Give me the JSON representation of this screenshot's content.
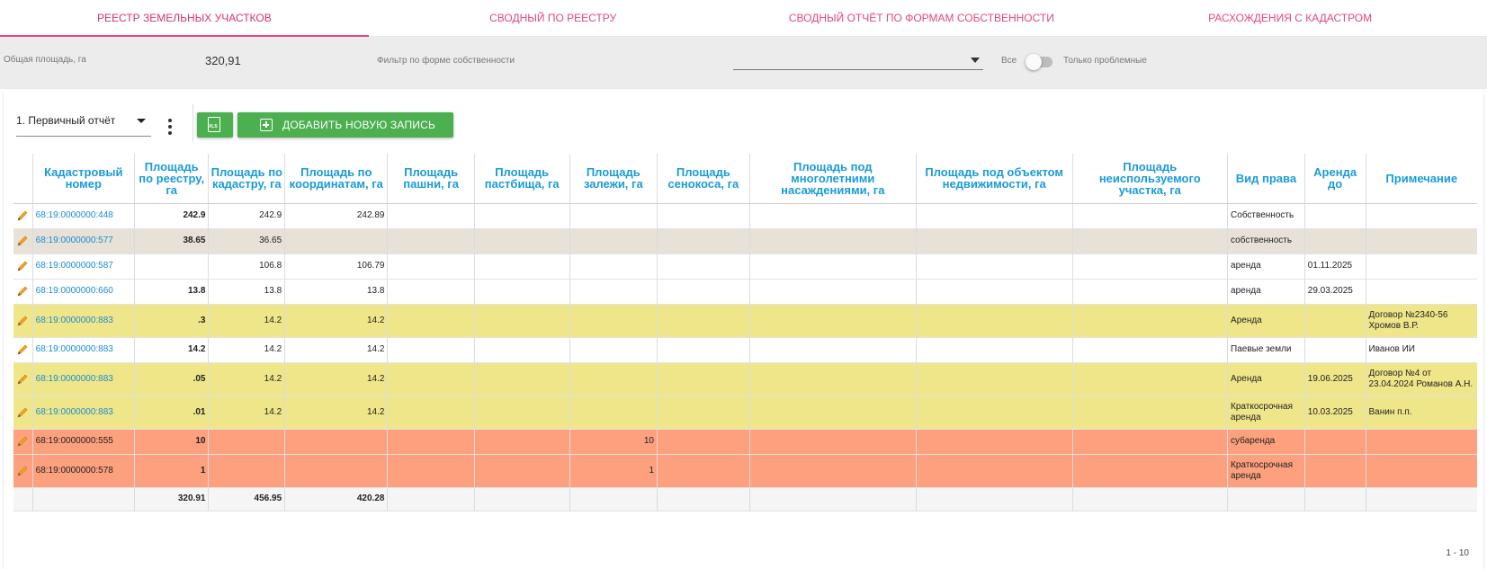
{
  "tabs": [
    {
      "label": "Реестр земельных участков"
    },
    {
      "label": "Сводный по реестру"
    },
    {
      "label": "Сводный отчёт по формам собственности"
    },
    {
      "label": "Расхождения с кадастром"
    }
  ],
  "filterbar": {
    "total_label": "Общая площадь, га",
    "total_value": "320,91",
    "owner_filter_label": "Фильтр по форме собственности",
    "owner_filter_value": "",
    "toggle_left": "Все",
    "toggle_right": "Только проблемные"
  },
  "toolbar": {
    "report_select": "1. Первичный отчёт",
    "add_label": "Добавить новую запись",
    "xls_icon_text": "XLS"
  },
  "table": {
    "headers": [
      "",
      "Кадастровый номер",
      "Площадь по реестру, га",
      "Площадь по кадастру, га",
      "Площадь по координатам, га",
      "Площадь пашни, га",
      "Площадь пастбища, га",
      "Площадь залежи, га",
      "Площадь сенокоса, га",
      "Площадь под многолетними насаждениями, га",
      "Площадь под объектом недвижимости, га",
      "Площадь неиспользуемого участка, га",
      "Вид права",
      "Аренда до",
      "Примечание"
    ],
    "rows": [
      {
        "style": "white",
        "cad": "68:19:0000000:448",
        "reg": "242.9",
        "kad": "242.9",
        "coord": "242.89",
        "pash": "",
        "past": "",
        "zal": "",
        "sen": "",
        "mnog": "",
        "obj": "",
        "neisp": "",
        "right": "Собственность",
        "until": "",
        "note": ""
      },
      {
        "style": "gray",
        "cad": "68:19:0000000:577",
        "reg": "38.65",
        "kad": "36.65",
        "coord": "",
        "pash": "",
        "past": "",
        "zal": "",
        "sen": "",
        "mnog": "",
        "obj": "",
        "neisp": "",
        "right": "собственность",
        "until": "",
        "note": ""
      },
      {
        "style": "white",
        "cad": "68:19:0000000:587",
        "reg": "",
        "kad": "106.8",
        "coord": "106.79",
        "pash": "",
        "past": "",
        "zal": "",
        "sen": "",
        "mnog": "",
        "obj": "",
        "neisp": "",
        "right": "аренда",
        "until": "01.11.2025",
        "note": ""
      },
      {
        "style": "white",
        "cad": "68:19:0000000:660",
        "reg": "13.8",
        "kad": "13.8",
        "coord": "13.8",
        "pash": "",
        "past": "",
        "zal": "",
        "sen": "",
        "mnog": "",
        "obj": "",
        "neisp": "",
        "right": "аренда",
        "until": "29.03.2025",
        "note": ""
      },
      {
        "style": "yellow",
        "cad": "68:19:0000000:883",
        "reg": ".3",
        "kad": "14.2",
        "coord": "14.2",
        "pash": "",
        "past": "",
        "zal": "",
        "sen": "",
        "mnog": "",
        "obj": "",
        "neisp": "",
        "right": "Аренда",
        "until": "",
        "note": "Договор №2340-56 Хромов В.Р."
      },
      {
        "style": "white",
        "cad": "68:19:0000000:883",
        "reg": "14.2",
        "kad": "14.2",
        "coord": "14.2",
        "pash": "",
        "past": "",
        "zal": "",
        "sen": "",
        "mnog": "",
        "obj": "",
        "neisp": "",
        "right": "Паевые земли",
        "until": "",
        "note": "Иванов ИИ"
      },
      {
        "style": "yellow",
        "cad": "68:19:0000000:883",
        "reg": ".05",
        "kad": "14.2",
        "coord": "14.2",
        "pash": "",
        "past": "",
        "zal": "",
        "sen": "",
        "mnog": "",
        "obj": "",
        "neisp": "",
        "right": "Аренда",
        "until": "19.06.2025",
        "note": "Договор №4 от 23.04.2024 Романов А.Н."
      },
      {
        "style": "yellow",
        "cad": "68:19:0000000:883",
        "reg": ".01",
        "kad": "14.2",
        "coord": "14.2",
        "pash": "",
        "past": "",
        "zal": "",
        "sen": "",
        "mnog": "",
        "obj": "",
        "neisp": "",
        "right": "Краткосрочная аренда",
        "until": "10.03.2025",
        "note": "Ванин п.п."
      },
      {
        "style": "orange",
        "cad": "68:19:0000000:555",
        "reg": "10",
        "kad": "",
        "coord": "",
        "pash": "",
        "past": "",
        "zal": "10",
        "sen": "",
        "mnog": "",
        "obj": "",
        "neisp": "",
        "right": "субаренда",
        "until": "",
        "note": ""
      },
      {
        "style": "orange",
        "cad": "68:19:0000000:578",
        "reg": "1",
        "kad": "",
        "coord": "",
        "pash": "",
        "past": "",
        "zal": "1",
        "sen": "",
        "mnog": "",
        "obj": "",
        "neisp": "",
        "right": "Краткосрочная аренда",
        "until": "",
        "note": ""
      }
    ],
    "totals": {
      "reg": "320.91",
      "kad": "456.95",
      "coord": "420.28"
    }
  },
  "pager": "1 - 10",
  "colors": {
    "accent": "#e2487a",
    "header": "#1a9bd8",
    "button": "#4caf50",
    "gray_row": "#e7e1d7",
    "yellow_row": "#efe68a",
    "orange_row": "#fda07e"
  }
}
